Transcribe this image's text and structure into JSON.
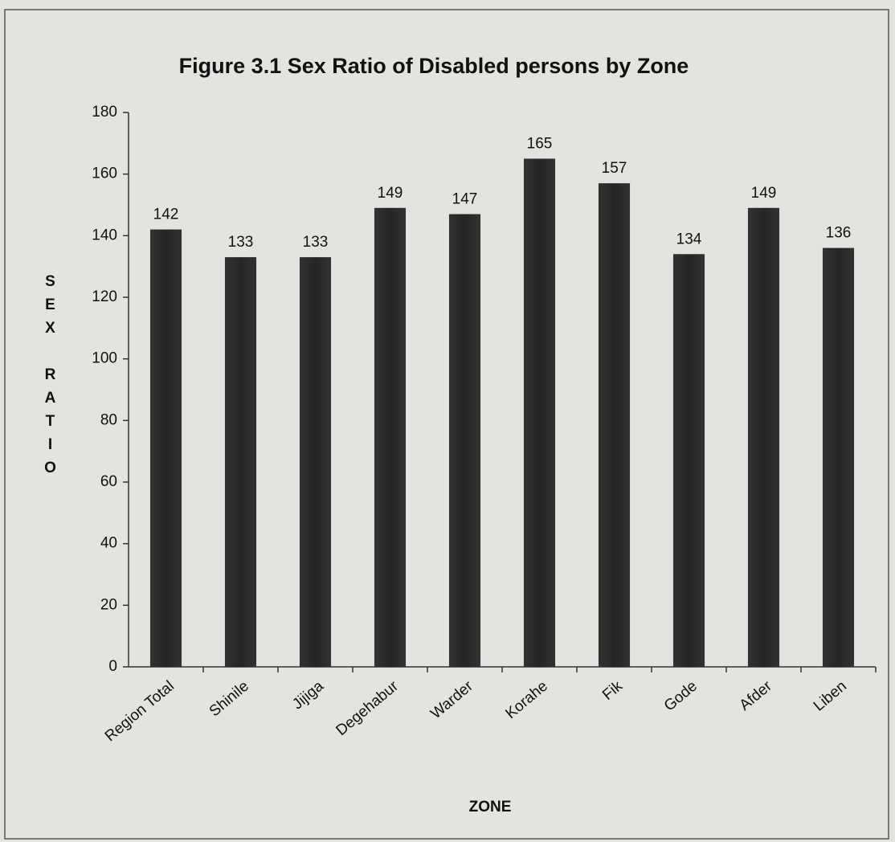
{
  "chart_data": {
    "type": "bar",
    "title": "Figure 3.1 Sex Ratio of Disabled persons by Zone",
    "x_label": "ZONE",
    "y_label": "SEX RATIO",
    "categories": [
      "Region Total",
      "Shinile",
      "Jijiga",
      "Degehabur",
      "Warder",
      "Korahe",
      "Fik",
      "Gode",
      "Afder",
      "Liben"
    ],
    "values": [
      142,
      133,
      133,
      149,
      147,
      165,
      157,
      134,
      149,
      136
    ],
    "color": "#2b2b2b",
    "ylim": [
      0,
      180
    ],
    "yticks": [
      0,
      20,
      40,
      60,
      80,
      100,
      120,
      140,
      160,
      180
    ],
    "grid": false
  }
}
